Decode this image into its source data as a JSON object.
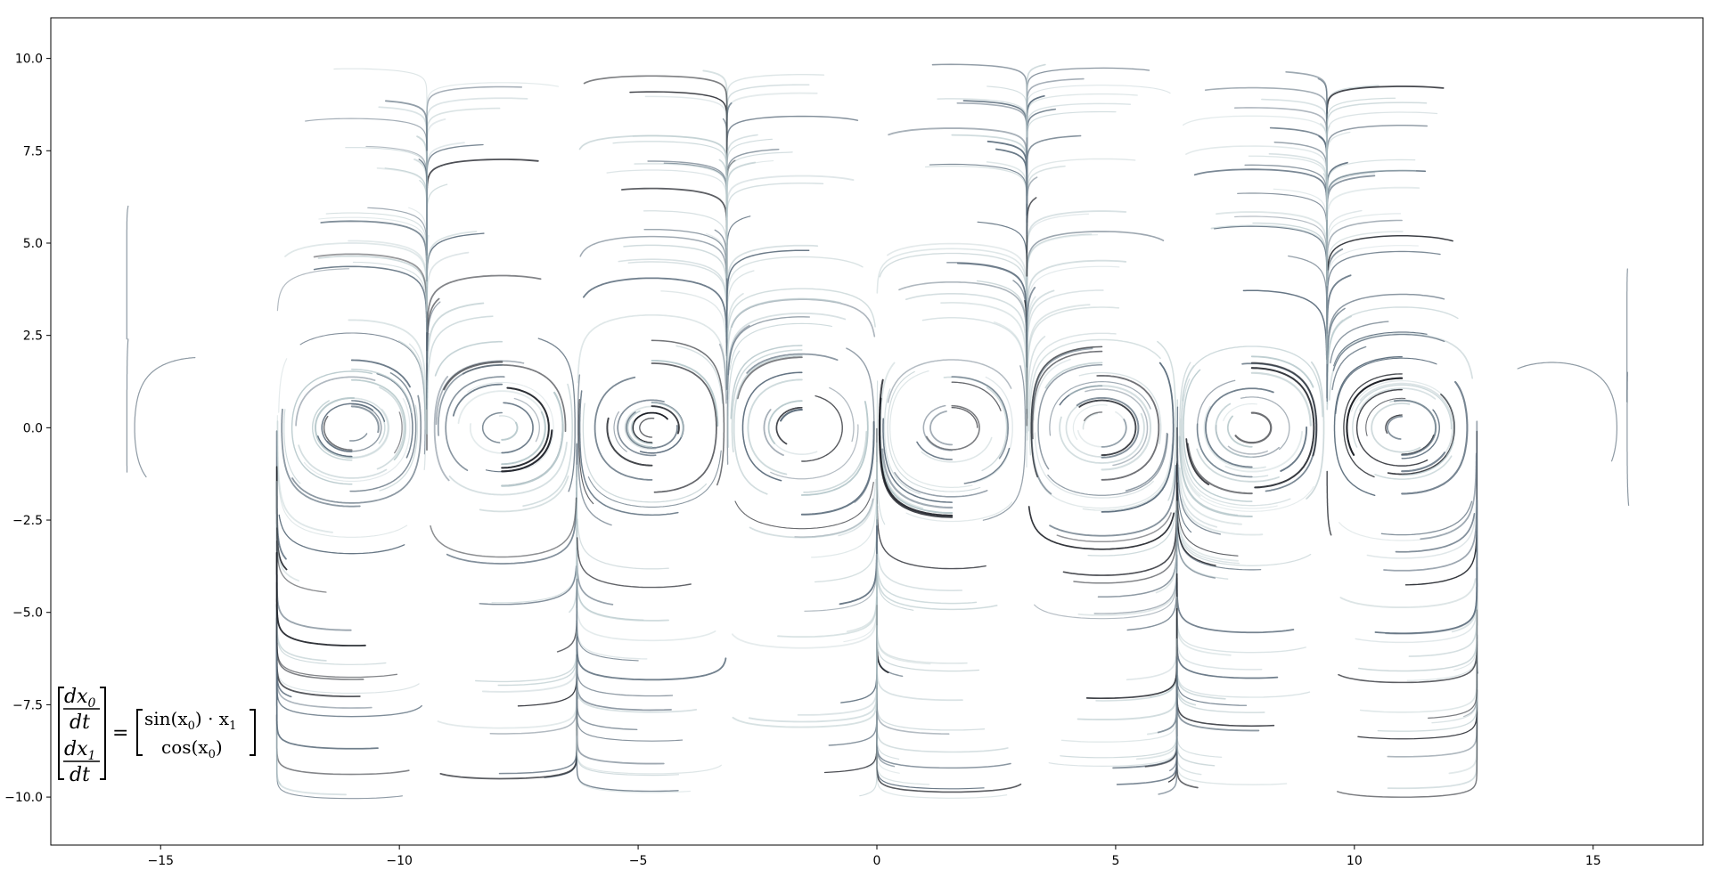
{
  "chart_data": {
    "type": "line",
    "title": "",
    "xlabel": "",
    "ylabel": "",
    "xlim": [
      -17.3,
      17.3
    ],
    "ylim": [
      -11.3,
      11.1
    ],
    "grid": false,
    "legend": "none",
    "x_ticks": [
      -15,
      -10,
      -5,
      0,
      5,
      10,
      15
    ],
    "x_tick_labels": [
      "−15",
      "−10",
      "−5",
      "0",
      "5",
      "10",
      "15"
    ],
    "y_ticks": [
      10.0,
      7.5,
      5.0,
      2.5,
      0.0,
      -2.5,
      -5.0,
      -7.5,
      -10.0
    ],
    "y_tick_labels": [
      "10.0",
      "7.5",
      "5.0",
      "2.5",
      "0.0",
      "−2.5",
      "−5.0",
      "−7.5",
      "−10.0"
    ],
    "vector_field": {
      "dx0_dt": "sin(x0) * x1",
      "dx1_dt": "cos(x0)"
    },
    "equation": {
      "lhs_top_num": "dx",
      "lhs_top_sub": "0",
      "lhs_top_den": "dt",
      "lhs_bot_num": "dx",
      "lhs_bot_sub": "1",
      "lhs_bot_den": "dt",
      "equals": "=",
      "rhs_top_a": "sin(x",
      "rhs_top_a_sub": "0",
      "rhs_top_b": ") · x",
      "rhs_top_b_sub": "1",
      "rhs_bot_a": "cos(x",
      "rhs_bot_a_sub": "0",
      "rhs_bot_b": ")"
    },
    "colors": {
      "dark": "#1c1f26",
      "mid": "#5e6f7e",
      "light": "#b9cacd"
    }
  }
}
